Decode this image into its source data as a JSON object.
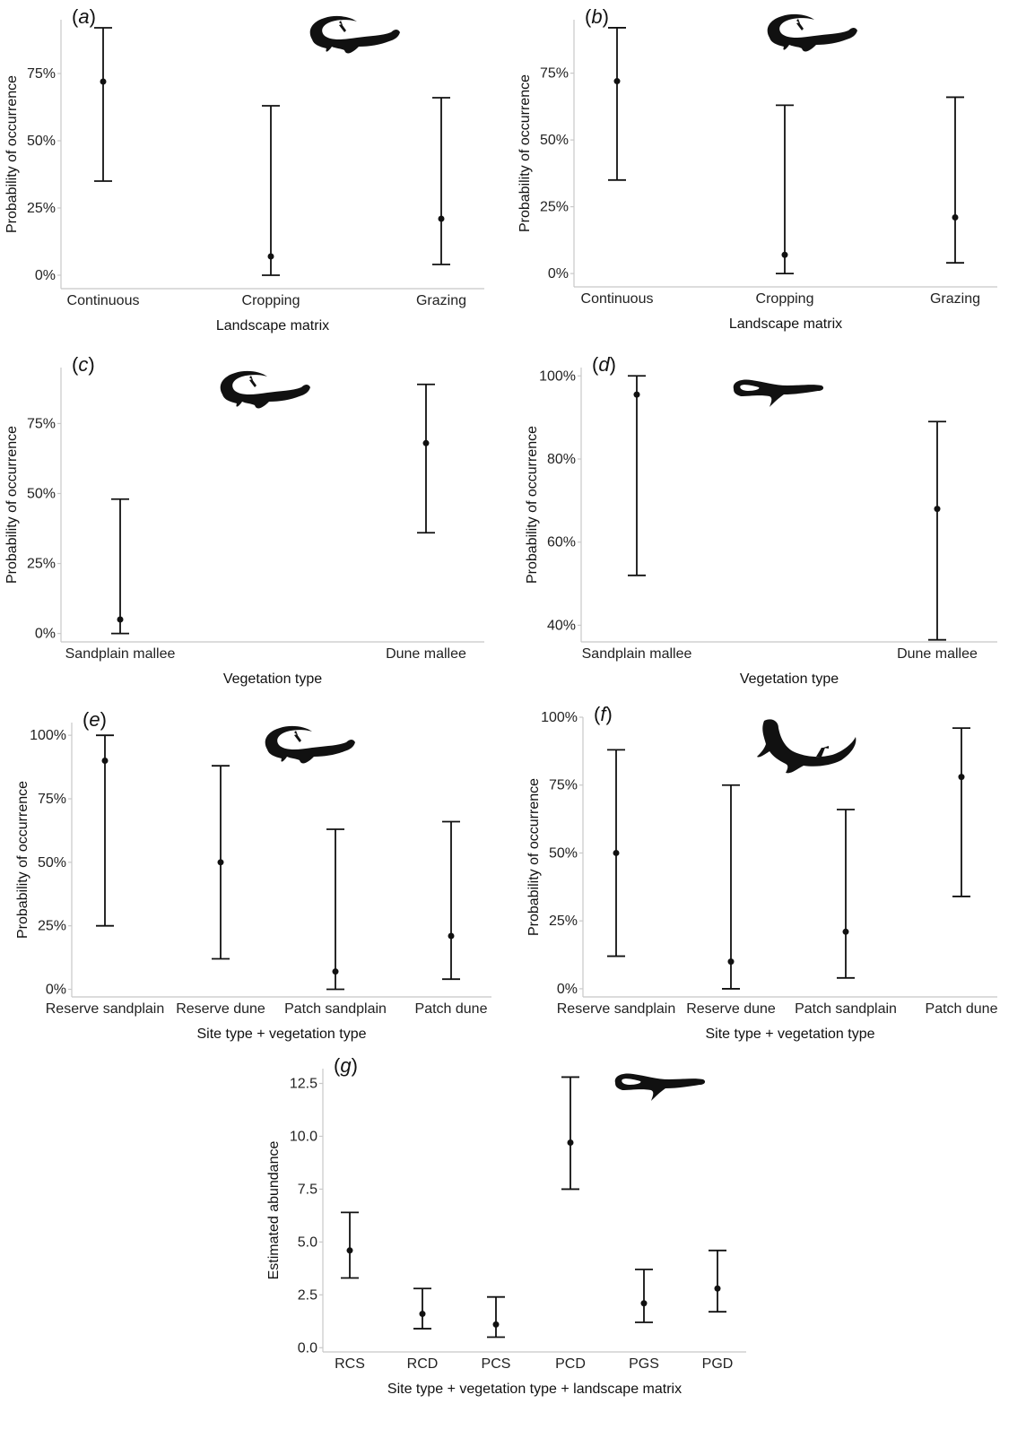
{
  "chart_data": [
    {
      "type": "errorbar",
      "panel_label": "a",
      "xlabel": "Landscape matrix",
      "ylabel": "Probability of occurrence",
      "ylim": [
        -0.05,
        0.95
      ],
      "yticks": [
        0,
        0.25,
        0.5,
        0.75
      ],
      "ytick_labels": [
        "0%",
        "25%",
        "50%",
        "75%"
      ],
      "categories": [
        "Continuous",
        "Cropping",
        "Grazing"
      ],
      "values": [
        0.72,
        0.07,
        0.21
      ],
      "lower": [
        0.35,
        0.0,
        0.04
      ],
      "upper": [
        0.92,
        0.63,
        0.66
      ],
      "silhouette": "lizard-icon"
    },
    {
      "type": "errorbar",
      "panel_label": "b",
      "xlabel": "Landscape matrix",
      "ylabel": "Probability of occurrence",
      "ylim": [
        -0.05,
        0.95
      ],
      "yticks": [
        0,
        0.25,
        0.5,
        0.75
      ],
      "ytick_labels": [
        "0%",
        "25%",
        "50%",
        "75%"
      ],
      "categories": [
        "Continuous",
        "Cropping",
        "Grazing"
      ],
      "values": [
        0.72,
        0.07,
        0.21
      ],
      "lower": [
        0.35,
        0.0,
        0.04
      ],
      "upper": [
        0.92,
        0.63,
        0.66
      ],
      "silhouette": "lizard-icon"
    },
    {
      "type": "errorbar",
      "panel_label": "c",
      "xlabel": "Vegetation type",
      "ylabel": "Probability of occurrence",
      "ylim": [
        -0.03,
        0.95
      ],
      "yticks": [
        0,
        0.25,
        0.5,
        0.75
      ],
      "ytick_labels": [
        "0%",
        "25%",
        "50%",
        "75%"
      ],
      "categories": [
        "Sandplain mallee",
        "Dune mallee"
      ],
      "values": [
        0.05,
        0.68
      ],
      "lower": [
        0.0,
        0.36
      ],
      "upper": [
        0.48,
        0.89
      ],
      "silhouette": "lizard-icon"
    },
    {
      "type": "errorbar",
      "panel_label": "d",
      "xlabel": "Vegetation type",
      "ylabel": "Probability of occurrence",
      "ylim": [
        0.36,
        1.02
      ],
      "yticks": [
        0.4,
        0.6,
        0.8,
        1.0
      ],
      "ytick_labels": [
        "40%",
        "60%",
        "80%",
        "100%"
      ],
      "categories": [
        "Sandplain mallee",
        "Dune mallee"
      ],
      "values": [
        0.955,
        0.68
      ],
      "lower": [
        0.52,
        0.365
      ],
      "upper": [
        1.0,
        0.89
      ],
      "silhouette": "legless-lizard-icon"
    },
    {
      "type": "errorbar",
      "panel_label": "e",
      "xlabel": "Site type + vegetation type",
      "ylabel": "Probability of occurrence",
      "ylim": [
        -0.03,
        1.05
      ],
      "yticks": [
        0,
        0.25,
        0.5,
        0.75,
        1.0
      ],
      "ytick_labels": [
        "0%",
        "25%",
        "50%",
        "75%",
        "100%"
      ],
      "categories": [
        "Reserve sandplain",
        "Reserve dune",
        "Patch sandplain",
        "Patch dune"
      ],
      "values": [
        0.9,
        0.5,
        0.07,
        0.21
      ],
      "lower": [
        0.25,
        0.12,
        0.0,
        0.04
      ],
      "upper": [
        1.0,
        0.88,
        0.63,
        0.66
      ],
      "silhouette": "lizard-icon"
    },
    {
      "type": "errorbar",
      "panel_label": "f",
      "xlabel": "Site type + vegetation type",
      "ylabel": "Probability of occurrence",
      "ylim": [
        -0.03,
        1.0
      ],
      "yticks": [
        0,
        0.25,
        0.5,
        0.75,
        1.0
      ],
      "ytick_labels": [
        "0%",
        "25%",
        "50%",
        "75%",
        "100%"
      ],
      "categories": [
        "Reserve sandplain",
        "Reserve dune",
        "Patch sandplain",
        "Patch dune"
      ],
      "values": [
        0.5,
        0.1,
        0.21,
        0.78
      ],
      "lower": [
        0.12,
        0.0,
        0.04,
        0.34
      ],
      "upper": [
        0.88,
        0.75,
        0.66,
        0.96
      ],
      "silhouette": "gecko-icon"
    },
    {
      "type": "errorbar",
      "panel_label": "g",
      "xlabel": "Site type + vegetation type + landscape matrix",
      "ylabel": "Estimated abundance",
      "ylim": [
        -0.2,
        13.2
      ],
      "yticks": [
        0,
        2.5,
        5,
        7.5,
        10,
        12.5
      ],
      "ytick_labels": [
        "0.0",
        "2.5",
        "5.0",
        "7.5",
        "10.0",
        "12.5"
      ],
      "categories": [
        "RCS",
        "RCD",
        "PCS",
        "PCD",
        "PGS",
        "PGD"
      ],
      "values": [
        4.6,
        1.6,
        1.1,
        9.7,
        2.1,
        2.8
      ],
      "lower": [
        3.3,
        0.9,
        0.5,
        7.5,
        1.2,
        1.7
      ],
      "upper": [
        6.4,
        2.8,
        2.4,
        12.8,
        3.7,
        4.6
      ],
      "silhouette": "legless-lizard-icon"
    }
  ]
}
